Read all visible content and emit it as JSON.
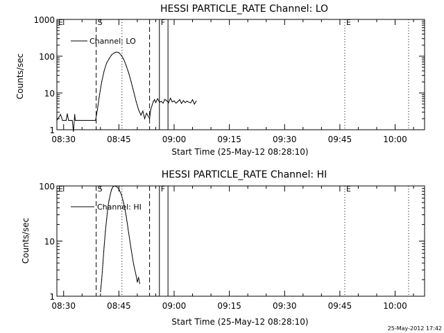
{
  "timestamp": "25-May-2012 17:42",
  "chart_data": [
    {
      "type": "line",
      "title": "HESSI PARTICLE_RATE Channel: LO",
      "xlabel": "Start Time (25-May-12 08:28:10)",
      "ylabel": "Counts/sec",
      "y_scale": "log",
      "ylim": [
        1,
        1000
      ],
      "xlim": [
        "08:28:10",
        "10:08:00"
      ],
      "x_ticks": [
        "08:30",
        "08:45",
        "09:00",
        "09:15",
        "09:30",
        "09:45",
        "10:00"
      ],
      "y_ticks": [
        "1",
        "10",
        "100",
        "1000"
      ],
      "legend": "Channel: LO",
      "legend_position": "top-left",
      "markers": [
        {
          "label": "E",
          "time": "08:28:10",
          "style": "dotted"
        },
        {
          "label": "S",
          "time": "08:38:50",
          "style": "dashed"
        },
        {
          "label": "",
          "time": "08:45:50",
          "style": "dotted"
        },
        {
          "label": "",
          "time": "08:53:20",
          "style": "dashed"
        },
        {
          "label": "F",
          "time": "08:56:00",
          "style": "solid"
        },
        {
          "label": "",
          "time": "08:58:20",
          "style": "solid"
        },
        {
          "label": "E",
          "time": "09:46:20",
          "style": "dotted"
        },
        {
          "label": "",
          "time": "10:03:40",
          "style": "dotted"
        }
      ],
      "series": [
        {
          "name": "Channel: LO",
          "points": [
            [
              "08:28:10",
              1.8
            ],
            [
              "08:29:10",
              2.6
            ],
            [
              "08:29:40",
              1.8
            ],
            [
              "08:30:40",
              1.8
            ],
            [
              "08:31:00",
              2.7
            ],
            [
              "08:31:20",
              1.8
            ],
            [
              "08:32:20",
              1.8
            ],
            [
              "08:32:40",
              0.9
            ],
            [
              "08:33:00",
              2.6
            ],
            [
              "08:33:10",
              1.8
            ],
            [
              "08:34:00",
              1.8
            ],
            [
              "08:38:40",
              1.8
            ],
            [
              "08:39:10",
              3.5
            ],
            [
              "08:39:40",
              8
            ],
            [
              "08:40:20",
              20
            ],
            [
              "08:41:00",
              40
            ],
            [
              "08:41:40",
              65
            ],
            [
              "08:42:20",
              85
            ],
            [
              "08:43:00",
              108
            ],
            [
              "08:43:40",
              122
            ],
            [
              "08:44:20",
              130
            ],
            [
              "08:45:00",
              125
            ],
            [
              "08:45:40",
              105
            ],
            [
              "08:46:20",
              82
            ],
            [
              "08:47:00",
              55
            ],
            [
              "08:47:40",
              35
            ],
            [
              "08:48:20",
              20
            ],
            [
              "08:49:00",
              11
            ],
            [
              "08:49:40",
              6
            ],
            [
              "08:50:20",
              3.5
            ],
            [
              "08:51:00",
              2.5
            ],
            [
              "08:51:30",
              3.2
            ],
            [
              "08:52:00",
              2
            ],
            [
              "08:52:30",
              2.8
            ],
            [
              "08:53:20",
              2.0
            ],
            [
              "08:53:40",
              3.6
            ],
            [
              "08:54:20",
              5.8
            ],
            [
              "08:54:40",
              6.6
            ],
            [
              "08:55:00",
              5.5
            ],
            [
              "08:55:30",
              7
            ],
            [
              "08:56:00",
              5.6
            ],
            [
              "08:56:30",
              5.9
            ],
            [
              "08:57:00",
              5.3
            ],
            [
              "08:57:30",
              6.7
            ],
            [
              "08:58:00",
              6.1
            ],
            [
              "08:58:30",
              5.4
            ],
            [
              "08:59:00",
              7.2
            ],
            [
              "08:59:30",
              5.7
            ],
            [
              "09:00:00",
              6.1
            ],
            [
              "09:00:30",
              5.3
            ],
            [
              "09:01:00",
              5.8
            ],
            [
              "09:01:30",
              6.6
            ],
            [
              "09:02:00",
              5.2
            ],
            [
              "09:02:30",
              6.2
            ],
            [
              "09:03:00",
              5.5
            ],
            [
              "09:03:30",
              6.0
            ],
            [
              "09:04:00",
              5.6
            ],
            [
              "09:04:30",
              5.4
            ],
            [
              "09:05:00",
              6.6
            ],
            [
              "09:05:30",
              5.0
            ],
            [
              "09:06:00",
              6.0
            ]
          ]
        }
      ]
    },
    {
      "type": "line",
      "title": "HESSI PARTICLE_RATE Channel: HI",
      "xlabel": "Start Time (25-May-12 08:28:10)",
      "ylabel": "Counts/sec",
      "y_scale": "log",
      "ylim": [
        1,
        100
      ],
      "xlim": [
        "08:28:10",
        "10:08:00"
      ],
      "x_ticks": [
        "08:30",
        "08:45",
        "09:00",
        "09:15",
        "09:30",
        "09:45",
        "10:00"
      ],
      "y_ticks": [
        "1",
        "10",
        "100"
      ],
      "legend": "Channel: HI",
      "legend_position": "top-left",
      "markers": [
        {
          "label": "E",
          "time": "08:28:10",
          "style": "dotted"
        },
        {
          "label": "S",
          "time": "08:38:50",
          "style": "dashed"
        },
        {
          "label": "",
          "time": "08:45:50",
          "style": "dotted"
        },
        {
          "label": "",
          "time": "08:53:20",
          "style": "dashed"
        },
        {
          "label": "F",
          "time": "08:56:00",
          "style": "solid"
        },
        {
          "label": "",
          "time": "08:58:20",
          "style": "solid"
        },
        {
          "label": "E",
          "time": "09:46:20",
          "style": "dotted"
        },
        {
          "label": "",
          "time": "10:03:40",
          "style": "dotted"
        }
      ],
      "series": [
        {
          "name": "Channel: HI",
          "points": [
            [
              "08:40:00",
              1.2
            ],
            [
              "08:40:20",
              2
            ],
            [
              "08:40:40",
              4
            ],
            [
              "08:41:00",
              8
            ],
            [
              "08:41:20",
              15
            ],
            [
              "08:41:40",
              25
            ],
            [
              "08:42:00",
              40
            ],
            [
              "08:42:20",
              55
            ],
            [
              "08:42:40",
              70
            ],
            [
              "08:43:00",
              85
            ],
            [
              "08:43:20",
              95
            ],
            [
              "08:43:40",
              100
            ],
            [
              "08:44:20",
              98
            ],
            [
              "08:45:00",
              88
            ],
            [
              "08:45:40",
              70
            ],
            [
              "08:46:20",
              48
            ],
            [
              "08:47:00",
              28
            ],
            [
              "08:47:40",
              14
            ],
            [
              "08:48:20",
              7
            ],
            [
              "08:49:00",
              3.8
            ],
            [
              "08:49:40",
              2.4
            ],
            [
              "08:50:00",
              1.8
            ],
            [
              "08:50:20",
              2.2
            ],
            [
              "08:50:40",
              1.7
            ]
          ]
        }
      ]
    }
  ]
}
